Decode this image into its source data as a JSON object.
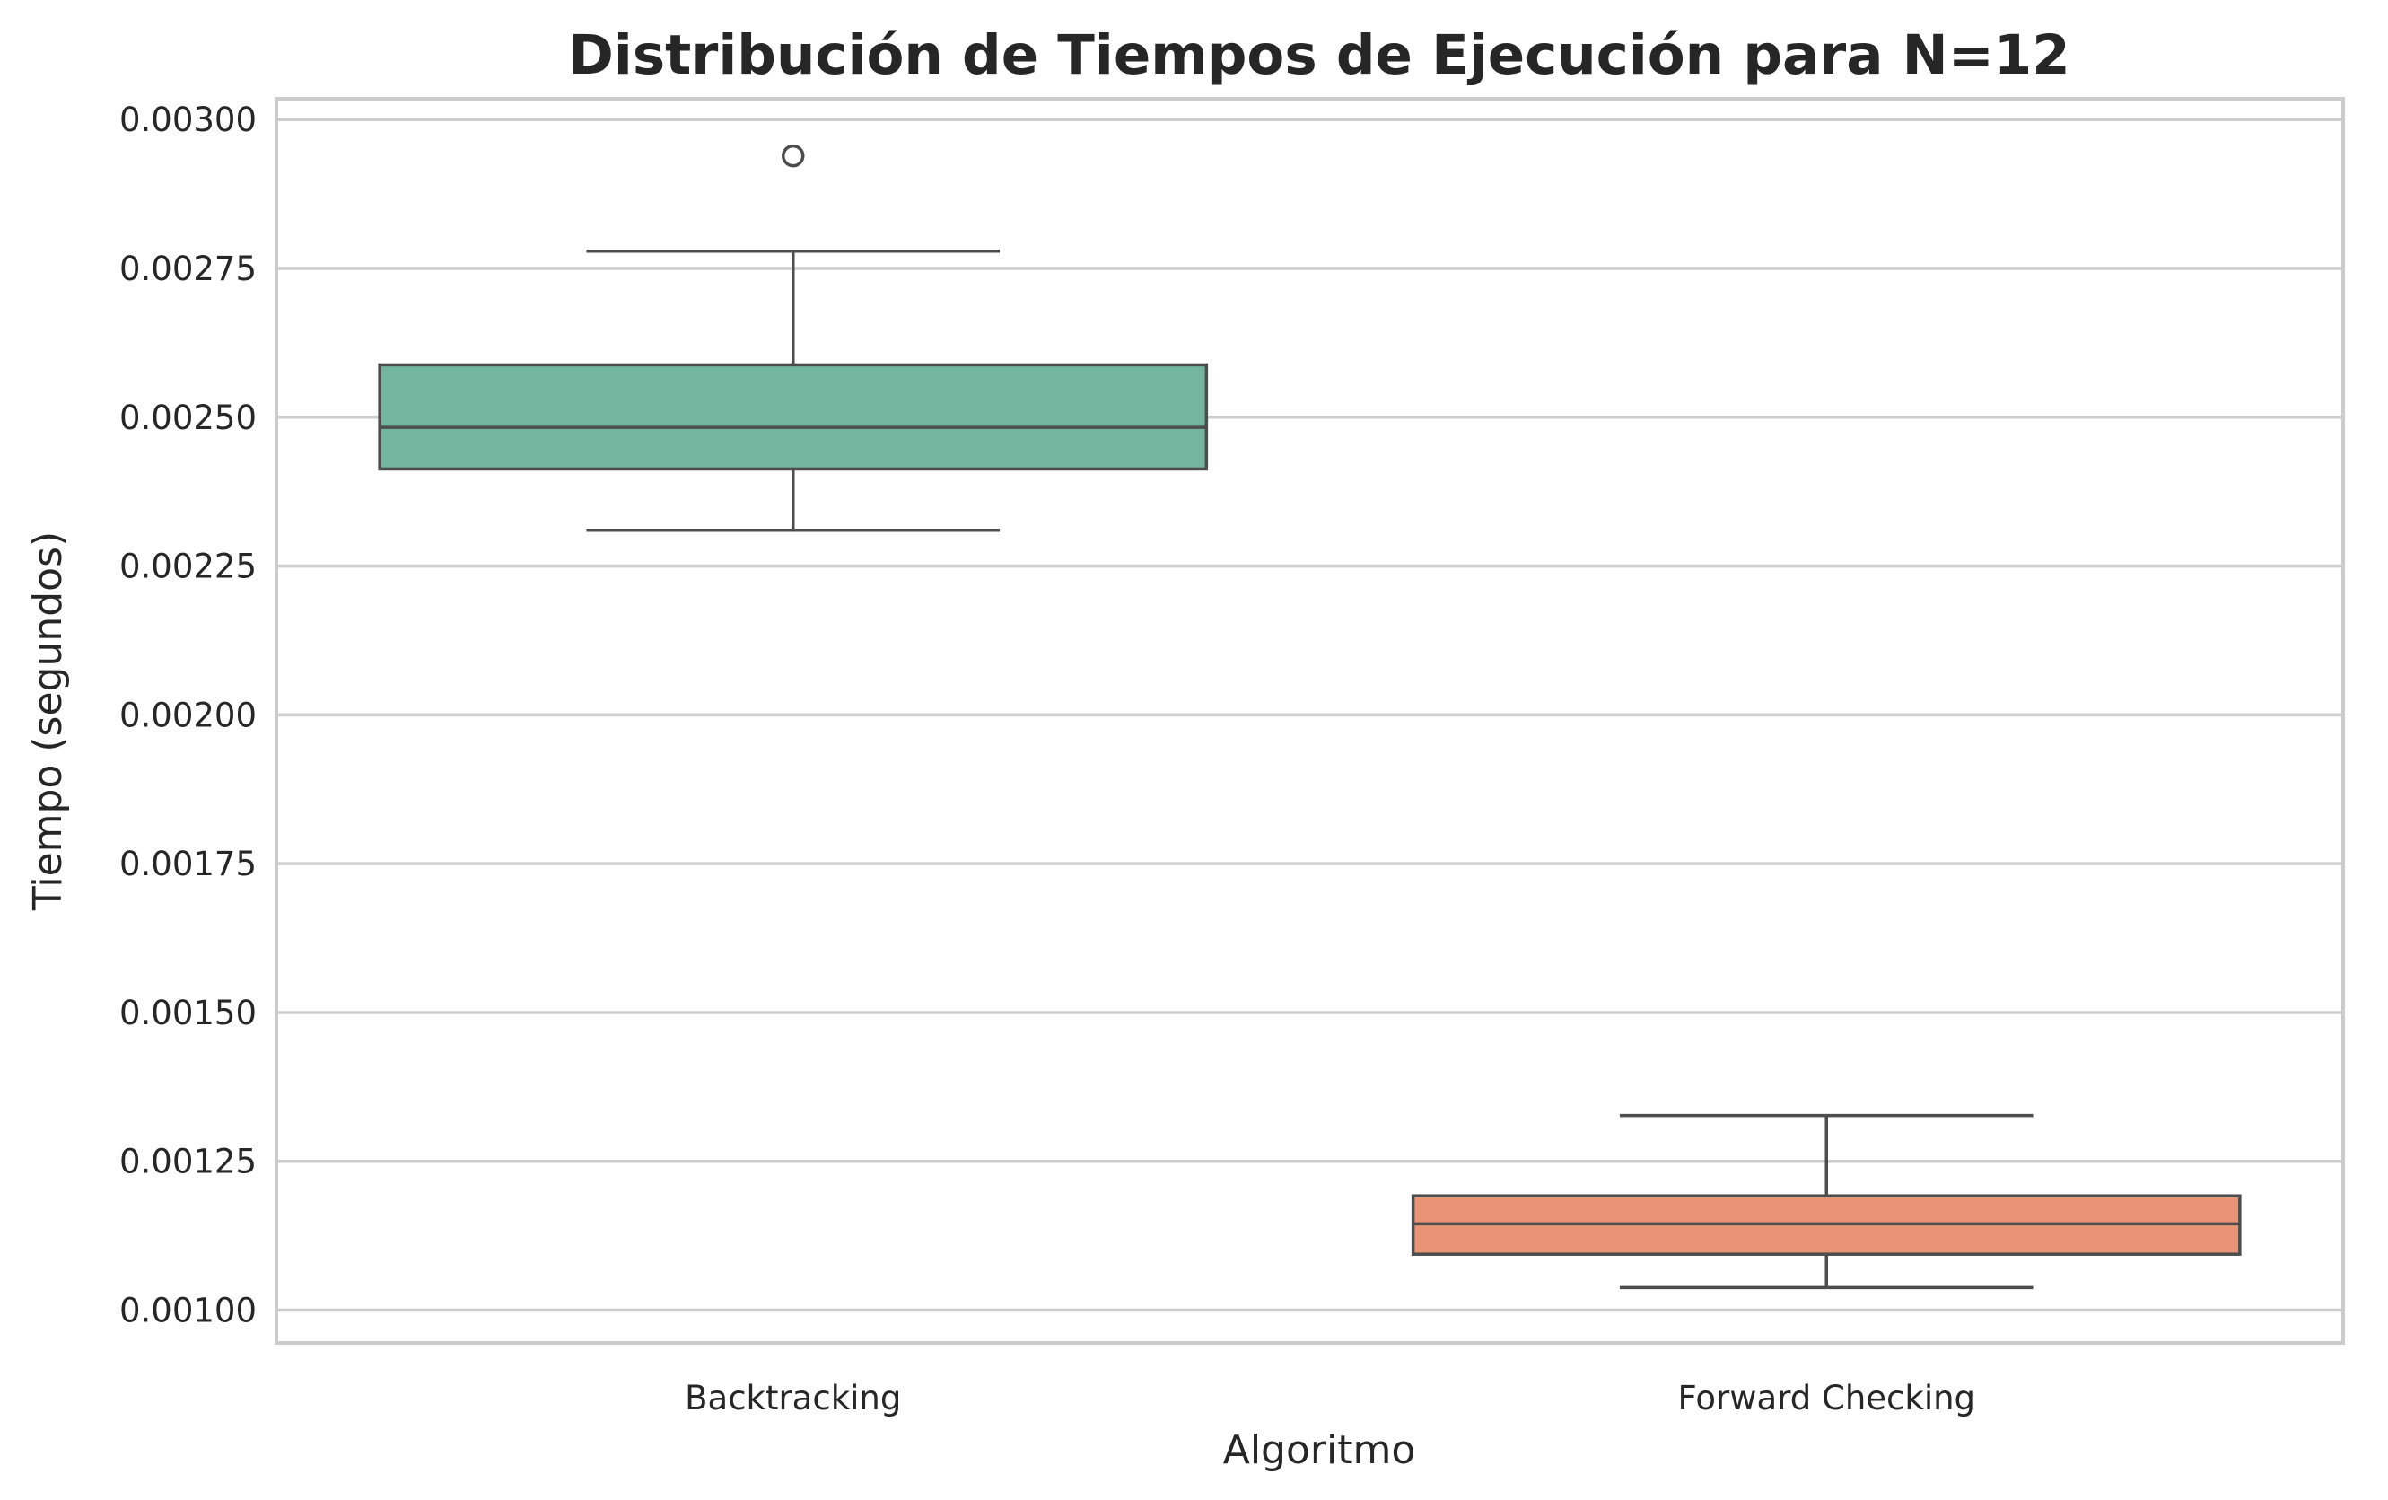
{
  "chart_data": {
    "type": "box",
    "title": "Distribución de Tiempos de Ejecución para N=12",
    "xlabel": "Algoritmo",
    "ylabel": "Tiempo (segundos)",
    "ylim": [
      0.000945,
      0.003035
    ],
    "yticks": [
      0.001,
      0.00125,
      0.0015,
      0.00175,
      0.002,
      0.00225,
      0.0025,
      0.00275,
      0.003
    ],
    "ytick_labels": [
      "0.00100",
      "0.00125",
      "0.00150",
      "0.00175",
      "0.00200",
      "0.00225",
      "0.00250",
      "0.00275",
      "0.00300"
    ],
    "grid": true,
    "categories": [
      "Backtracking",
      "Forward Checking"
    ],
    "series": [
      {
        "category": "Backtracking",
        "color": "#74b5a0",
        "whisker_low": 0.00231,
        "q1": 0.002413,
        "median": 0.002483,
        "q3": 0.002588,
        "whisker_high": 0.002779,
        "outliers": [
          0.002939
        ]
      },
      {
        "category": "Forward Checking",
        "color": "#e99474",
        "whisker_low": 0.001038,
        "q1": 0.001094,
        "median": 0.001145,
        "q3": 0.001192,
        "whisker_high": 0.001327,
        "outliers": []
      }
    ]
  }
}
